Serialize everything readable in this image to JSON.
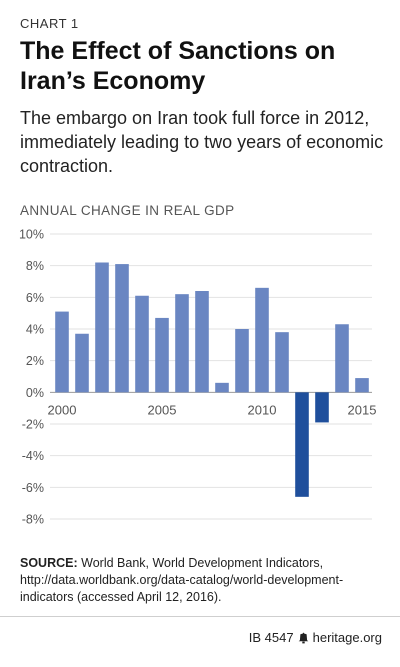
{
  "header": {
    "chart_label": "CHART 1",
    "title": "The Effect of Sanctions on Iran’s Economy",
    "subtitle": "The embargo on Iran took full force in 2012, immediately leading to two years of economic contraction.",
    "axis_title": "ANNUAL CHANGE IN REAL GDP"
  },
  "chart_data": {
    "type": "bar",
    "categories": [
      "2000",
      "2001",
      "2002",
      "2003",
      "2004",
      "2005",
      "2006",
      "2007",
      "2008",
      "2009",
      "2010",
      "2011",
      "2012",
      "2013",
      "2014",
      "2015"
    ],
    "values": [
      5.1,
      3.7,
      8.2,
      8.1,
      6.1,
      4.7,
      6.2,
      6.4,
      0.6,
      4.0,
      6.6,
      3.8,
      -6.6,
      -1.9,
      4.3,
      0.9
    ],
    "ylim": [
      -8,
      10
    ],
    "yticks": [
      10,
      8,
      6,
      4,
      2,
      0,
      -2,
      -4,
      -6,
      -8
    ],
    "ytick_labels": [
      "10%",
      "8%",
      "6%",
      "4%",
      "2%",
      "0%",
      "-2%",
      "-4%",
      "-6%",
      "-8%"
    ],
    "xtick_labels": [
      "2000",
      "2005",
      "2010",
      "2015"
    ],
    "xtick_positions": [
      2000,
      2005,
      2010,
      2015
    ],
    "grid": true,
    "colors": {
      "positive": "#6a86c2",
      "negative": "#1f4f9c",
      "grid": "#e2e2e2"
    }
  },
  "source": {
    "label": "SOURCE:",
    "text": "World Bank, World Development Indicators, http://data.worldbank.org/data-catalog/world-development-indicators (accessed April 12, 2016)."
  },
  "footer": {
    "id": "IB 4547",
    "site": "heritage.org",
    "icon": "bell-icon"
  }
}
